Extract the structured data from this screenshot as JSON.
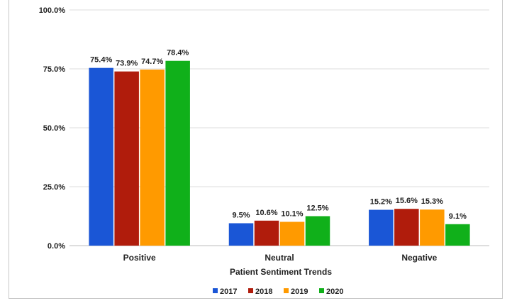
{
  "chart_data": {
    "type": "bar",
    "title": "",
    "xlabel": "Patient Sentiment Trends",
    "ylabel": "",
    "categories": [
      "Positive",
      "Neutral",
      "Negative"
    ],
    "series": [
      {
        "name": "2017",
        "color": "#1a56d6",
        "values": [
          75.4,
          9.5,
          15.2
        ],
        "labels": [
          "75.4%",
          "9.5%",
          "15.2%"
        ]
      },
      {
        "name": "2018",
        "color": "#b01c0c",
        "values": [
          73.9,
          10.6,
          15.6
        ],
        "labels": [
          "73.9%",
          "10.6%",
          "15.6%"
        ]
      },
      {
        "name": "2019",
        "color": "#ff9a00",
        "values": [
          74.7,
          10.1,
          15.3
        ],
        "labels": [
          "74.7%",
          "10.1%",
          "15.3%"
        ]
      },
      {
        "name": "2020",
        "color": "#10b01a",
        "values": [
          78.4,
          12.5,
          9.1
        ],
        "labels": [
          "78.4%",
          "12.5%",
          "9.1%"
        ]
      }
    ],
    "ylim": [
      0,
      100
    ],
    "yticks": [
      0,
      25,
      50,
      75,
      100
    ],
    "ytick_labels": [
      "0.0%",
      "25.0%",
      "50.0%",
      "75.0%",
      "100.0%"
    ],
    "grid": true,
    "legend_position": "bottom"
  }
}
